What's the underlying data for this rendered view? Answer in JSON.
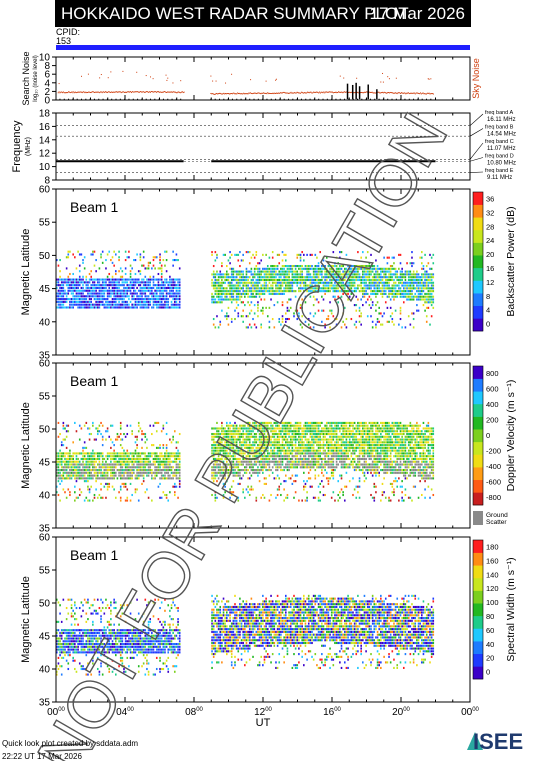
{
  "header": {
    "title": "HOKKAIDO WEST RADAR SUMMARY PLOT",
    "date": "17 Mar 2026",
    "cpid_label": "CPID:",
    "cpid_value": "153"
  },
  "colors": {
    "cpid_bar": "#1f1fff",
    "sky_noise": "#d04010",
    "search_noise": "#000000",
    "ground_scatter": "#8a8a8a"
  },
  "chart_data": [
    {
      "type": "line",
      "name": "noise",
      "ylabel": "Search Noise",
      "ylabel_sub": "log₁₀ (noise level)",
      "right_label": "Sky Noise",
      "ylim": [
        0,
        10
      ],
      "yticks": [
        "0",
        "2",
        "4",
        "6",
        "8",
        "10"
      ],
      "x": [
        "00:00",
        "06:00",
        "07:20",
        "09:00",
        "10:00",
        "16:00",
        "18:00",
        "20:00",
        "22:00"
      ],
      "series": [
        {
          "name": "Sky Noise",
          "values": [
            1.9,
            2.0,
            1.9,
            1.5,
            1.6,
            1.9,
            1.9,
            1.7,
            1.6
          ]
        }
      ],
      "spikes": [
        [
          16.9,
          3.8
        ],
        [
          17.2,
          3.5
        ],
        [
          17.4,
          4.0
        ],
        [
          17.6,
          3.2
        ],
        [
          18.1,
          3.6
        ],
        [
          18.6,
          2.5
        ]
      ]
    },
    {
      "type": "line",
      "name": "frequency",
      "ylabel": "Frequency",
      "ylabel_sub": "(MHz)",
      "ylim": [
        8,
        18
      ],
      "yticks": [
        "8",
        "10",
        "12",
        "14",
        "16",
        "18"
      ],
      "x_range": [
        0,
        22
      ],
      "gap": [
        7.4,
        9.0
      ],
      "series": [
        {
          "name": "",
          "values": [
            10.8,
            10.8
          ]
        }
      ],
      "freq_bands": [
        {
          "label": "freq band A",
          "value": "16.11 MHz",
          "mhz": 16.11
        },
        {
          "label": "freq band B",
          "value": "14.54 MHz",
          "mhz": 14.54
        },
        {
          "label": "freq band C",
          "value": "11.07 MHz",
          "mhz": 11.07
        },
        {
          "label": "freq band D",
          "value": "10.80 MHz",
          "mhz": 10.8
        },
        {
          "label": "freq band E",
          "value": "9.11 MHz",
          "mhz": 9.11
        }
      ]
    },
    {
      "type": "heatmap",
      "name": "power",
      "beam": "Beam  1",
      "ylabel": "Magnetic Latitude",
      "ylim": [
        35,
        60
      ],
      "yticks": [
        "35",
        "40",
        "45",
        "50",
        "55",
        "60"
      ],
      "colorbar_label": "Backscatter Power (dB)",
      "colorbar_ticks": [
        "0",
        "4",
        "8",
        "12",
        "16",
        "20",
        "24",
        "28",
        "32",
        "36"
      ],
      "colors": [
        "#3b00c8",
        "#1f3bff",
        "#1e7cff",
        "#1fc8ff",
        "#1ecc8a",
        "#22b822",
        "#7ccf1e",
        "#c8e61e",
        "#f0dc14",
        "#ff8c14",
        "#ff1e1e"
      ],
      "bands": [
        {
          "x0": 0.0,
          "x1": 7.2,
          "lat_lo": 42.0,
          "lat_hi": 50.5,
          "core_lo": 42.0,
          "core_hi": 46.5,
          "core": [
            0,
            1,
            2,
            3
          ]
        },
        {
          "x0": 9.0,
          "x1": 21.9,
          "lat_lo": 39.0,
          "lat_hi": 50.5,
          "core_lo": 42.5,
          "core_hi": 47.0,
          "core": [
            2,
            3,
            4,
            5,
            6,
            7
          ]
        }
      ]
    },
    {
      "type": "heatmap",
      "name": "velocity",
      "beam": "Beam  1",
      "ylabel": "Magnetic Latitude",
      "ylim": [
        35,
        60
      ],
      "yticks": [
        "35",
        "40",
        "45",
        "50",
        "55",
        "60"
      ],
      "colorbar_label": "Doppler Velocity (m s⁻¹)",
      "colorbar_ticks": [
        "-800",
        "-600",
        "-400",
        "-200",
        "0",
        "200",
        "400",
        "600",
        "800"
      ],
      "colors": [
        "#c81e1e",
        "#ff5a14",
        "#ff9c14",
        "#f0dc14",
        "#c8e61e",
        "#7ccf1e",
        "#22b822",
        "#1ecc8a",
        "#1fc8ff",
        "#1e7cff",
        "#3b00c8"
      ],
      "ground_scatter_label": "Ground\nScatter",
      "bands": [
        {
          "x0": 0.0,
          "x1": 7.2,
          "lat_lo": 39.0,
          "lat_hi": 51.0,
          "core_lo": 42.0,
          "core_hi": 46.5,
          "core": [
            4,
            5,
            6,
            7,
            3
          ]
        },
        {
          "x0": 9.0,
          "x1": 21.9,
          "lat_lo": 39.0,
          "lat_hi": 51.0,
          "core_lo": 42.0,
          "core_hi": 50.0,
          "core": [
            4,
            5,
            6,
            3,
            7
          ]
        }
      ]
    },
    {
      "type": "heatmap",
      "name": "width",
      "beam": "Beam  1",
      "ylabel": "Magnetic Latitude",
      "ylim": [
        35,
        60
      ],
      "yticks": [
        "35",
        "40",
        "45",
        "50",
        "55",
        "60"
      ],
      "colorbar_label": "Spectral Width (m s⁻¹)",
      "colorbar_ticks": [
        "0",
        "20",
        "40",
        "60",
        "80",
        "100",
        "120",
        "140",
        "160",
        "180"
      ],
      "colors": [
        "#3b00c8",
        "#1f3bff",
        "#1e7cff",
        "#1fc8ff",
        "#1ecc8a",
        "#22b822",
        "#7ccf1e",
        "#c8e61e",
        "#f0dc14",
        "#ff8c14",
        "#ff1e1e"
      ],
      "bands": [
        {
          "x0": 0.0,
          "x1": 7.2,
          "lat_lo": 39.0,
          "lat_hi": 50.5,
          "core_lo": 42.0,
          "core_hi": 46.0,
          "core": [
            0,
            1,
            1,
            2,
            4,
            6
          ]
        },
        {
          "x0": 9.0,
          "x1": 21.9,
          "lat_lo": 40.0,
          "lat_hi": 51.0,
          "core_lo": 42.0,
          "core_hi": 49.0,
          "core": [
            0,
            1,
            2,
            5,
            7,
            9
          ]
        }
      ]
    }
  ],
  "x_axis": {
    "label": "UT",
    "range_hours": [
      0,
      24
    ],
    "ticks": [
      {
        "h": "00",
        "m": "00"
      },
      {
        "h": "04",
        "m": "00"
      },
      {
        "h": "08",
        "m": "00"
      },
      {
        "h": "12",
        "m": "00"
      },
      {
        "h": "16",
        "m": "00"
      },
      {
        "h": "20",
        "m": "00"
      },
      {
        "h": "00",
        "m": "00"
      }
    ]
  },
  "watermark": "NOT FOR PUBLICATION",
  "footer": {
    "credit": "Quick look plot created by sddata.adm",
    "time": "22:22 UT 17 Mar 2026",
    "logo_text": "ISEE"
  }
}
